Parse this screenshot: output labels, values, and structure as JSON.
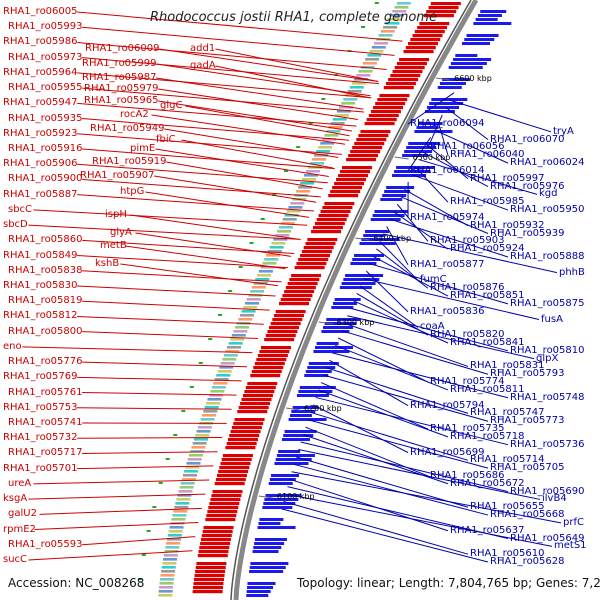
{
  "title": "Rhodococcus jostii RHA1, complete genome",
  "accession": "Accession: NC_008268",
  "footer": "Topology: linear; Length: 7,804,765 bp; Genes: 7,274",
  "colors": {
    "forward": "#dd0000",
    "reverse": "#1a1aee",
    "forward_label": "#cc0000",
    "reverse_label": "#0000aa",
    "backbone": "#888888"
  },
  "kbp_ticks": [
    "6600 kbp",
    "6500 kbp",
    "6400 kbp",
    "6300 kbp",
    "6200 kbp",
    "6100 kbp"
  ],
  "left_labels": [
    "RHA1_ro06005",
    "RHA1_ro05993",
    "RHA1_ro05986",
    "RHA1_ro05973",
    "RHA1_ro05964",
    "RHA1_ro05955",
    "RHA1_ro05947",
    "RHA1_ro05935",
    "RHA1_ro05923",
    "RHA1_ro05916",
    "RHA1_ro05906",
    "RHA1_ro05900",
    "RHA1_ro05887",
    "sbcC",
    "sbcD",
    "RHA1_ro05860",
    "RHA1_ro05849",
    "RHA1_ro05838",
    "RHA1_ro05830",
    "RHA1_ro05819",
    "RHA1_ro05812",
    "RHA1_ro05800",
    "eno",
    "RHA1_ro05776",
    "RHA1_ro05769",
    "RHA1_ro05761",
    "RHA1_ro05753",
    "RHA1_ro05741",
    "RHA1_ro05732",
    "RHA1_ro05717",
    "RHA1_ro05701",
    "ureA",
    "ksgA",
    "galU2",
    "rpmE2",
    "RHA1_ro05593",
    "sucC"
  ],
  "mid_labels": [
    "RHA1_ro06009",
    "add1",
    "RHA1_ro05999",
    "gadA",
    "RHA1_ro05987",
    "RHA1_ro05979",
    "RHA1_ro05965",
    "glgC",
    "rocA2",
    "RHA1_ro05949",
    "fbiC",
    "pimE",
    "RHA1_ro05919",
    "RHA1_ro05907",
    "htpG",
    "ispH",
    "glyA",
    "metB",
    "kshB"
  ],
  "right_labels": [
    "RHA1_ro06094",
    "tryA",
    "RHA1_ro06070",
    "RHA1_ro06056",
    "RHA1_ro06040",
    "RHA1_ro06024",
    "RHA1_ro06014",
    "RHA1_ro05997",
    "RHA1_ro05976",
    "kgd",
    "RHA1_ro05985",
    "RHA1_ro05950",
    "RHA1_ro05974",
    "RHA1_ro05932",
    "RHA1_ro05939",
    "RHA1_ro05903",
    "RHA1_ro05924",
    "RHA1_ro05888",
    "RHA1_ro05877",
    "phhB",
    "fumC",
    "RHA1_ro05876",
    "RHA1_ro05851",
    "RHA1_ro05875",
    "RHA1_ro05836",
    "fusA",
    "coaA",
    "RHA1_ro05820",
    "RHA1_ro05841",
    "RHA1_ro05810",
    "glpX",
    "RHA1_ro05831",
    "RHA1_ro05793",
    "RHA1_ro05774",
    "RHA1_ro05811",
    "RHA1_ro05748",
    "RHA1_ro05794",
    "RHA1_ro05747",
    "RHA1_ro05773",
    "RHA1_ro05735",
    "RHA1_ro05718",
    "RHA1_ro05736",
    "RHA1_ro05699",
    "RHA1_ro05714",
    "RHA1_ro05705",
    "RHA1_ro05686",
    "RHA1_ro05672",
    "RHA1_ro05690",
    "ilvB4",
    "RHA1_ro05655",
    "RHA1_ro05668",
    "prfC",
    "RHA1_ro05637",
    "RHA1_ro05649",
    "metS1",
    "RHA1_ro05610",
    "RHA1_ro05628"
  ]
}
